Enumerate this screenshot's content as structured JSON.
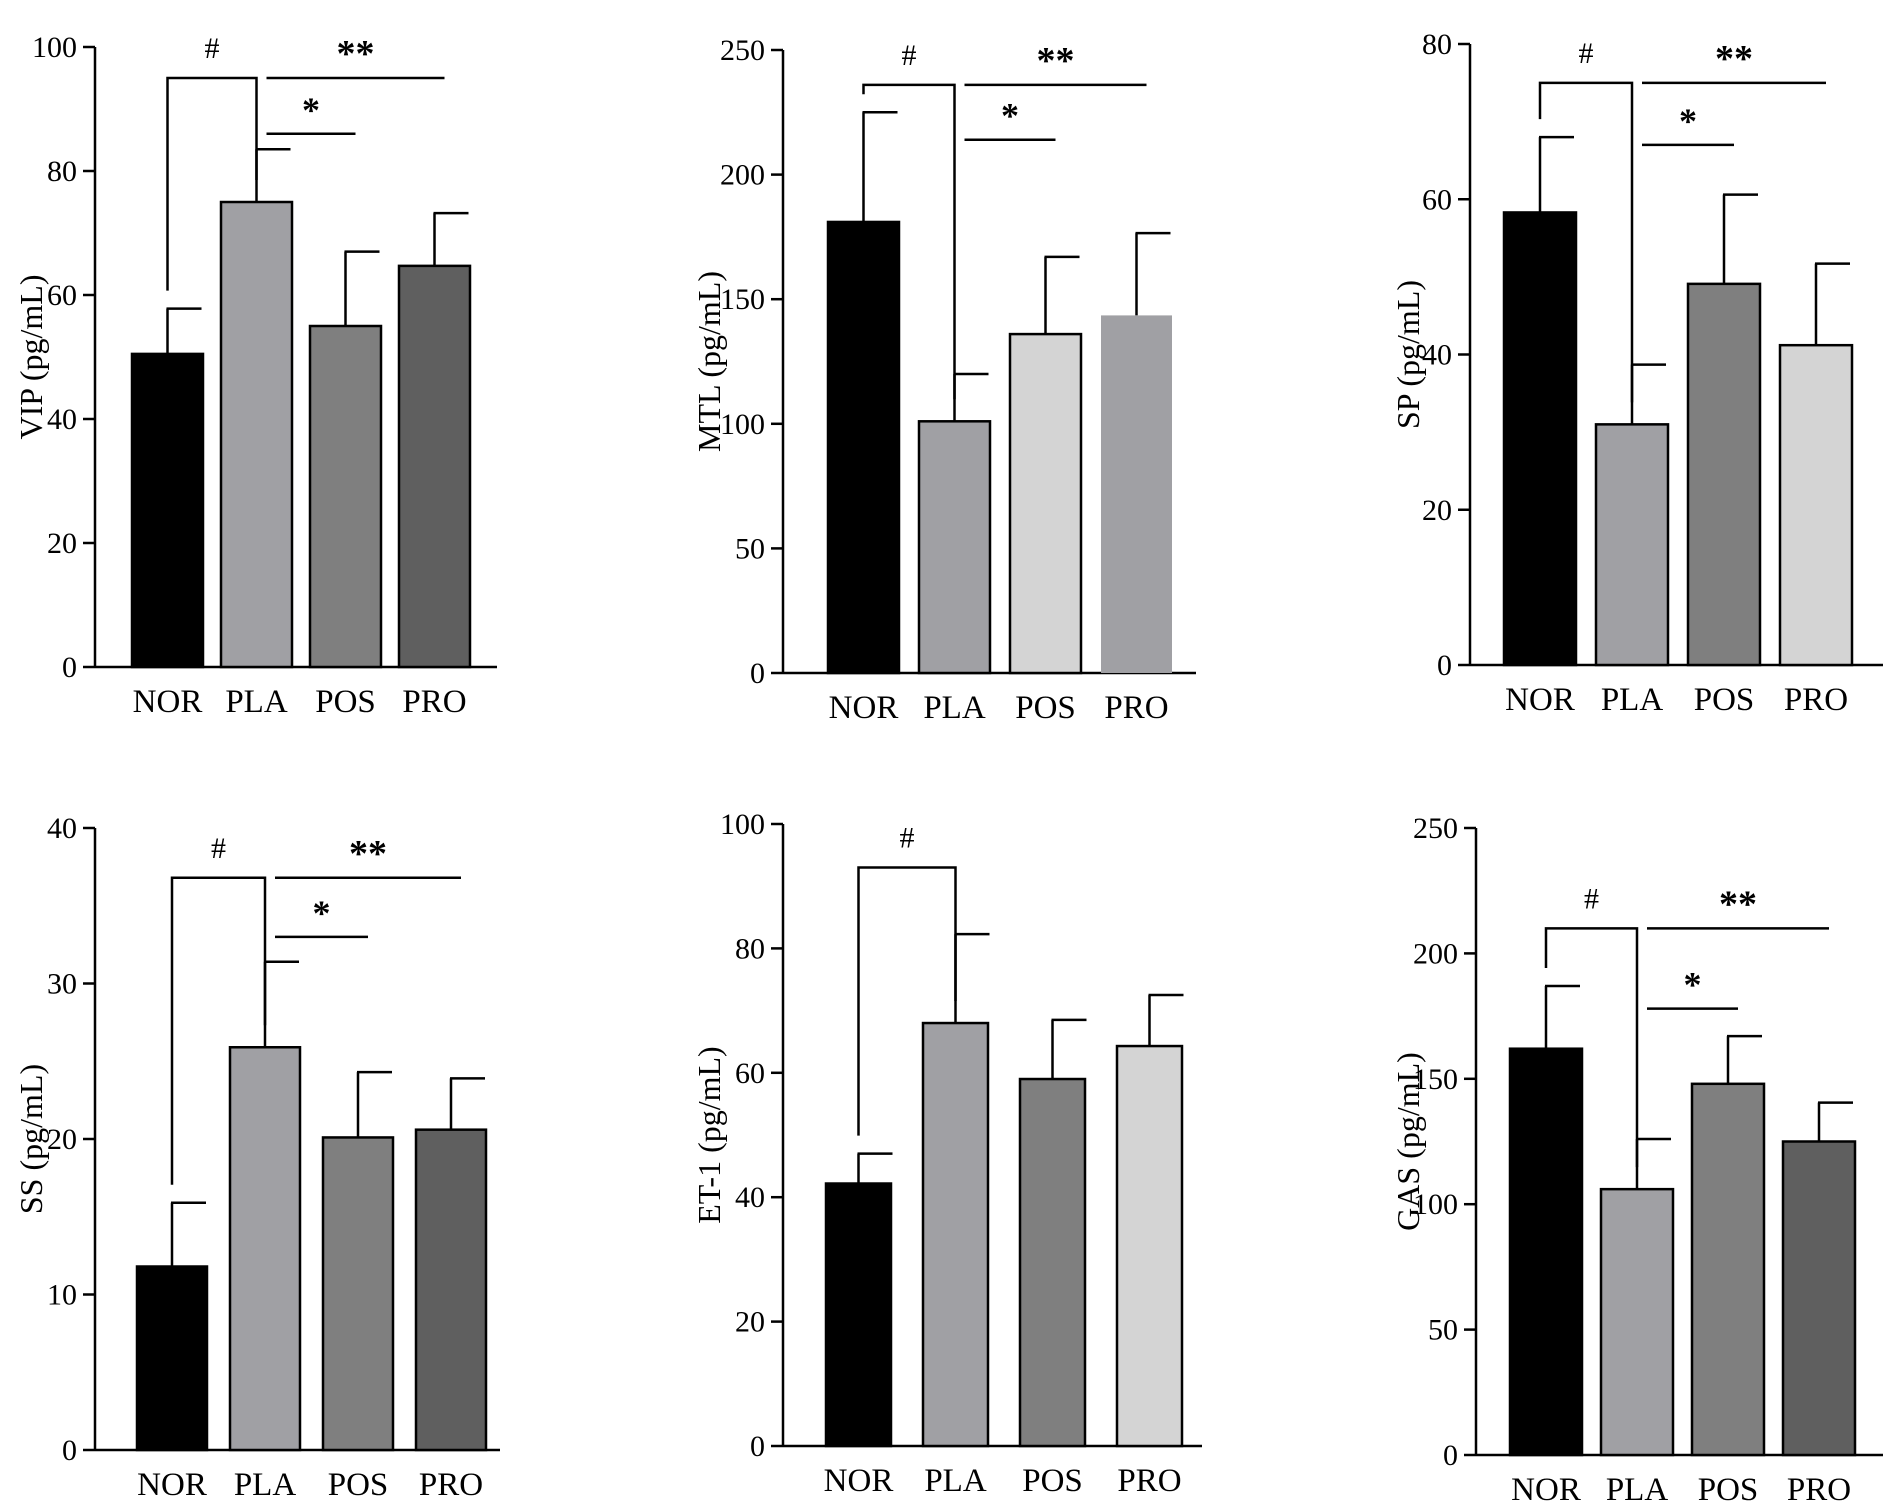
{
  "chart_data": [
    {
      "type": "bar",
      "ylabel": "VIP (pg/mL)",
      "categories": [
        "NOR",
        "PLA",
        "POS",
        "PRO"
      ],
      "values": [
        50.5,
        75,
        55,
        64.7
      ],
      "errors": [
        7.3,
        8.5,
        12,
        8.5
      ],
      "ylim": [
        0,
        100
      ],
      "yticks": [
        0,
        20,
        40,
        60,
        80,
        100
      ],
      "colors": [
        "#000000",
        "#a0a0a4",
        "#7f7f7f",
        "#5f5f5f"
      ],
      "significance": [
        {
          "label": "#",
          "from": 0,
          "to": 1,
          "y": 95,
          "type": "bracket"
        },
        {
          "label": "*",
          "from": 1,
          "to": 2,
          "y": 86,
          "type": "line"
        },
        {
          "label": "**",
          "from": 1,
          "to": 3,
          "y": 95,
          "type": "line"
        }
      ]
    },
    {
      "type": "bar",
      "ylabel": "MTL (pg/mL)",
      "categories": [
        "NOR",
        "PLA",
        "POS",
        "PRO"
      ],
      "values": [
        181,
        101,
        136,
        143.5
      ],
      "errors": [
        44,
        19,
        31,
        33
      ],
      "ylim": [
        0,
        250
      ],
      "yticks": [
        0,
        50,
        100,
        150,
        200,
        250
      ],
      "colors": [
        "#000000",
        "#a0a0a4",
        "#d4d4d4",
        "#a0a0a4"
      ],
      "significance": [
        {
          "label": "#",
          "from": 0,
          "to": 1,
          "y": 236,
          "type": "bracket"
        },
        {
          "label": "*",
          "from": 1,
          "to": 2,
          "y": 214,
          "type": "line"
        },
        {
          "label": "**",
          "from": 1,
          "to": 3,
          "y": 236,
          "type": "line"
        }
      ]
    },
    {
      "type": "bar",
      "ylabel": "SP (pg/mL)",
      "categories": [
        "NOR",
        "PLA",
        "POS",
        "PRO"
      ],
      "values": [
        58.3,
        31,
        49.1,
        41.2
      ],
      "errors": [
        9.7,
        7.7,
        11.5,
        10.5
      ],
      "ylim": [
        0,
        80
      ],
      "yticks": [
        0,
        20,
        40,
        60,
        80
      ],
      "colors": [
        "#000000",
        "#a0a0a4",
        "#7f7f7f",
        "#d4d4d4"
      ],
      "significance": [
        {
          "label": "#",
          "from": 0,
          "to": 1,
          "y": 75,
          "type": "bracket"
        },
        {
          "label": "*",
          "from": 1,
          "to": 2,
          "y": 67,
          "type": "line"
        },
        {
          "label": "**",
          "from": 1,
          "to": 3,
          "y": 75,
          "type": "line"
        }
      ]
    },
    {
      "type": "bar",
      "ylabel": "SS (pg/mL)",
      "categories": [
        "NOR",
        "PLA",
        "POS",
        "PRO"
      ],
      "values": [
        11.8,
        25.9,
        20.1,
        20.6
      ],
      "errors": [
        4.1,
        5.5,
        4.2,
        3.3
      ],
      "ylim": [
        0,
        40
      ],
      "yticks": [
        0,
        10,
        20,
        30,
        40
      ],
      "colors": [
        "#000000",
        "#a0a0a4",
        "#7f7f7f",
        "#5f5f5f"
      ],
      "significance": [
        {
          "label": "#",
          "from": 0,
          "to": 1,
          "y": 36.8,
          "type": "bracket"
        },
        {
          "label": "*",
          "from": 1,
          "to": 2,
          "y": 33,
          "type": "line"
        },
        {
          "label": "**",
          "from": 1,
          "to": 3,
          "y": 36.8,
          "type": "line"
        }
      ]
    },
    {
      "type": "bar",
      "ylabel": "ET-1 (pg/mL)",
      "categories": [
        "NOR",
        "PLA",
        "POS",
        "PRO"
      ],
      "values": [
        42.2,
        68,
        59,
        64.3
      ],
      "errors": [
        4.8,
        14.3,
        9.5,
        8.2
      ],
      "ylim": [
        0,
        100
      ],
      "yticks": [
        0,
        20,
        40,
        60,
        80,
        100
      ],
      "colors": [
        "#000000",
        "#a0a0a4",
        "#7f7f7f",
        "#d4d4d4"
      ],
      "significance": [
        {
          "label": "#",
          "from": 0,
          "to": 1,
          "y": 93,
          "type": "bracket"
        }
      ]
    },
    {
      "type": "bar",
      "ylabel": "GAS (pg/mL)",
      "categories": [
        "NOR",
        "PLA",
        "POS",
        "PRO"
      ],
      "values": [
        162,
        106,
        148,
        125
      ],
      "errors": [
        25,
        20,
        19,
        15.5
      ],
      "ylim": [
        0,
        250
      ],
      "yticks": [
        0,
        50,
        100,
        150,
        200,
        250
      ],
      "colors": [
        "#000000",
        "#a0a0a4",
        "#7f7f7f",
        "#5f5f5f"
      ],
      "significance": [
        {
          "label": "#",
          "from": 0,
          "to": 1,
          "y": 210,
          "type": "bracket"
        },
        {
          "label": "*",
          "from": 1,
          "to": 2,
          "y": 178,
          "type": "line"
        },
        {
          "label": "**",
          "from": 1,
          "to": 3,
          "y": 210,
          "type": "line"
        }
      ]
    }
  ]
}
